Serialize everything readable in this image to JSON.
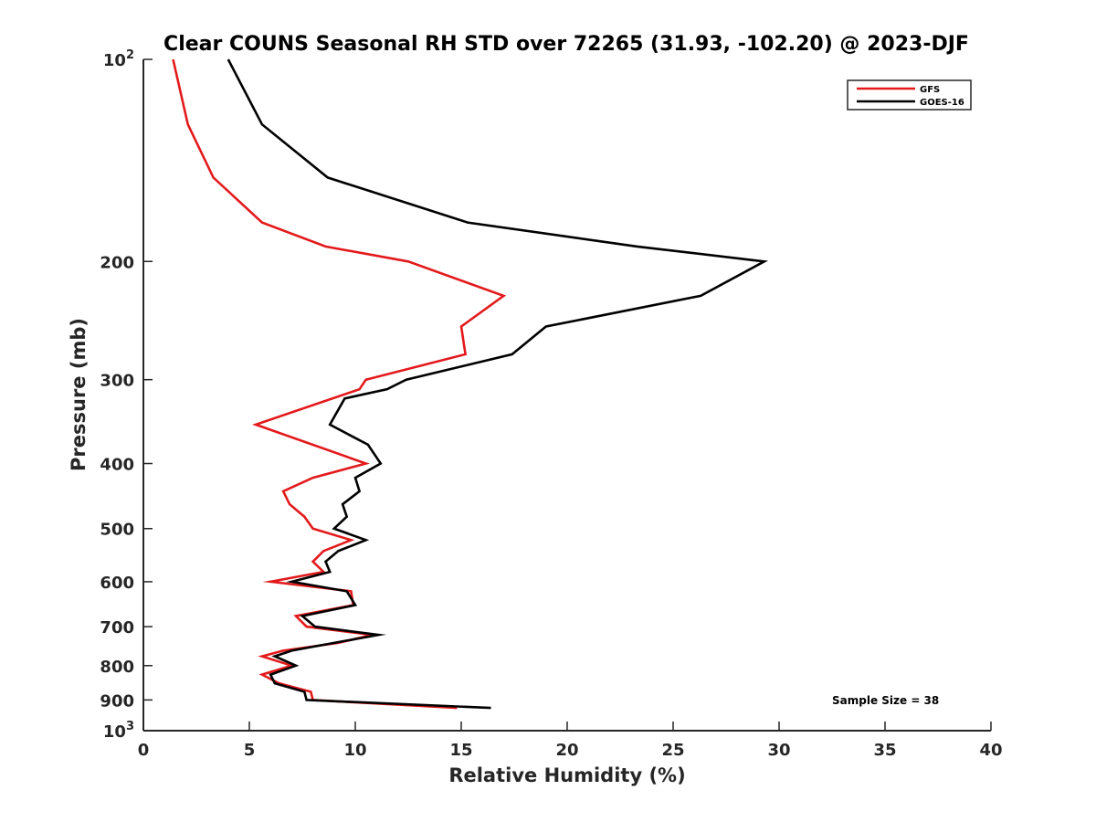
{
  "chart_data": {
    "type": "line",
    "title": "Clear COUNS Seasonal RH STD over 72265 (31.93, -102.20) @ 2023-DJF",
    "xlabel": "Relative Humidity (%)",
    "ylabel": "Pressure (mb)",
    "xlim": [
      0,
      40
    ],
    "ylim": [
      100,
      1000
    ],
    "yscale": "log",
    "y_reversed": true,
    "grid": false,
    "x_ticks": [
      0,
      5,
      10,
      15,
      20,
      25,
      30,
      35,
      40
    ],
    "x_tick_labels": [
      "0",
      "5",
      "10",
      "15",
      "20",
      "25",
      "30",
      "35",
      "40"
    ],
    "y_ticks": [
      {
        "value": 100,
        "base": "10",
        "exp": "2"
      },
      {
        "value": 200,
        "label": "200"
      },
      {
        "value": 300,
        "label": "300"
      },
      {
        "value": 400,
        "label": "400"
      },
      {
        "value": 500,
        "label": "500"
      },
      {
        "value": 600,
        "label": "600"
      },
      {
        "value": 700,
        "label": "700"
      },
      {
        "value": 800,
        "label": "800"
      },
      {
        "value": 900,
        "label": "900"
      },
      {
        "value": 1000,
        "base": "10",
        "exp": "3"
      }
    ],
    "legend": {
      "position": "top-right",
      "entries": [
        "GFS",
        "GOES-16"
      ]
    },
    "annotation": "Sample Size = 38",
    "series": [
      {
        "name": "GFS",
        "color": "#e31a1c",
        "points": [
          [
            1.4,
            100
          ],
          [
            2.1,
            125
          ],
          [
            3.3,
            150
          ],
          [
            5.6,
            175
          ],
          [
            8.6,
            190
          ],
          [
            12.5,
            200
          ],
          [
            17.0,
            225
          ],
          [
            15.0,
            250
          ],
          [
            15.2,
            275
          ],
          [
            10.5,
            300
          ],
          [
            10.2,
            310
          ],
          [
            5.3,
            350
          ],
          [
            10.5,
            400
          ],
          [
            8.0,
            420
          ],
          [
            6.6,
            440
          ],
          [
            6.9,
            460
          ],
          [
            7.6,
            480
          ],
          [
            8.0,
            500
          ],
          [
            9.8,
            520
          ],
          [
            8.5,
            540
          ],
          [
            8.0,
            560
          ],
          [
            8.5,
            580
          ],
          [
            6.0,
            600
          ],
          [
            9.8,
            620
          ],
          [
            9.9,
            650
          ],
          [
            7.2,
            675
          ],
          [
            7.7,
            700
          ],
          [
            10.8,
            720
          ],
          [
            9.2,
            740
          ],
          [
            6.6,
            760
          ],
          [
            5.6,
            775
          ],
          [
            7.0,
            800
          ],
          [
            5.6,
            825
          ],
          [
            6.4,
            850
          ],
          [
            7.9,
            875
          ],
          [
            8.0,
            900
          ],
          [
            14.8,
            925
          ]
        ]
      },
      {
        "name": "GOES-16",
        "color": "#000000",
        "points": [
          [
            4.0,
            100
          ],
          [
            5.6,
            125
          ],
          [
            8.7,
            150
          ],
          [
            15.3,
            175
          ],
          [
            23.3,
            190
          ],
          [
            29.3,
            200
          ],
          [
            26.3,
            225
          ],
          [
            19.0,
            250
          ],
          [
            17.4,
            275
          ],
          [
            12.4,
            300
          ],
          [
            11.5,
            310
          ],
          [
            9.5,
            320
          ],
          [
            8.8,
            350
          ],
          [
            10.6,
            375
          ],
          [
            11.2,
            400
          ],
          [
            10.0,
            420
          ],
          [
            10.2,
            440
          ],
          [
            9.4,
            460
          ],
          [
            9.6,
            480
          ],
          [
            9.0,
            500
          ],
          [
            10.5,
            520
          ],
          [
            9.2,
            540
          ],
          [
            8.6,
            560
          ],
          [
            8.8,
            580
          ],
          [
            7.0,
            600
          ],
          [
            9.6,
            620
          ],
          [
            10.0,
            650
          ],
          [
            7.5,
            675
          ],
          [
            8.1,
            700
          ],
          [
            11.1,
            720
          ],
          [
            9.0,
            740
          ],
          [
            7.0,
            760
          ],
          [
            6.2,
            775
          ],
          [
            7.2,
            800
          ],
          [
            6.0,
            825
          ],
          [
            6.2,
            850
          ],
          [
            7.6,
            875
          ],
          [
            7.7,
            900
          ],
          [
            16.4,
            925
          ]
        ]
      }
    ]
  }
}
